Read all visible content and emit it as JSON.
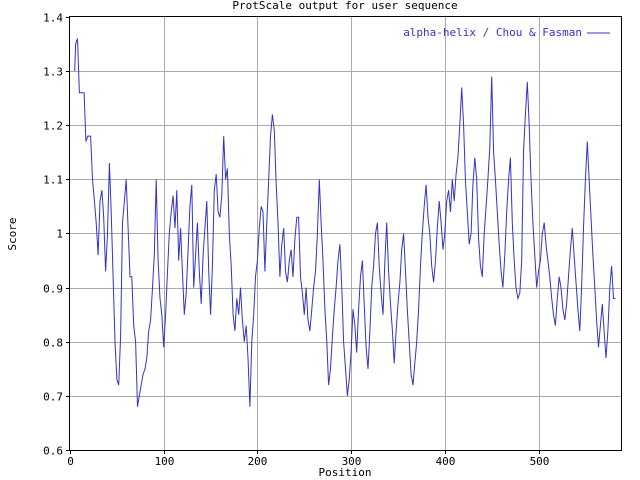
{
  "chart_data": {
    "type": "line",
    "title": "ProtScale output for user sequence",
    "xlabel": "Position",
    "ylabel": "Score",
    "xlim": [
      0,
      588
    ],
    "ylim": [
      0.6,
      1.4
    ],
    "x_ticks": [
      0,
      100,
      200,
      300,
      400,
      500
    ],
    "y_ticks": [
      0.6,
      0.7,
      0.8,
      0.9,
      1.0,
      1.1,
      1.2,
      1.3,
      1.4
    ],
    "x_tick_labels": [
      "0",
      "100",
      "200",
      "300",
      "400",
      "500"
    ],
    "y_tick_labels": [
      "0.6",
      "0.7",
      "0.8",
      "0.9",
      "1",
      "1.1",
      "1.2",
      "1.3",
      "1.4"
    ],
    "grid": true,
    "legend_position": "top-right",
    "line_color": "#3333cc",
    "series": [
      {
        "name": "alpha-helix / Chou & Fasman",
        "points": [
          [
            5,
            1.3
          ],
          [
            6,
            1.35
          ],
          [
            8,
            1.36
          ],
          [
            10,
            1.26
          ],
          [
            13,
            1.26
          ],
          [
            15,
            1.26
          ],
          [
            17,
            1.17
          ],
          [
            19,
            1.18
          ],
          [
            22,
            1.18
          ],
          [
            24,
            1.1
          ],
          [
            26,
            1.06
          ],
          [
            28,
            1.02
          ],
          [
            30,
            0.96
          ],
          [
            32,
            1.06
          ],
          [
            34,
            1.08
          ],
          [
            36,
            1.03
          ],
          [
            38,
            0.93
          ],
          [
            40,
            1.0
          ],
          [
            42,
            1.13
          ],
          [
            44,
            1.04
          ],
          [
            46,
            0.92
          ],
          [
            48,
            0.8
          ],
          [
            50,
            0.73
          ],
          [
            52,
            0.72
          ],
          [
            54,
            0.81
          ],
          [
            56,
            1.02
          ],
          [
            58,
            1.06
          ],
          [
            60,
            1.1
          ],
          [
            62,
            1.01
          ],
          [
            64,
            0.92
          ],
          [
            66,
            0.92
          ],
          [
            68,
            0.83
          ],
          [
            70,
            0.8
          ],
          [
            72,
            0.68
          ],
          [
            74,
            0.7
          ],
          [
            76,
            0.72
          ],
          [
            78,
            0.74
          ],
          [
            80,
            0.75
          ],
          [
            82,
            0.77
          ],
          [
            84,
            0.82
          ],
          [
            86,
            0.84
          ],
          [
            88,
            0.9
          ],
          [
            90,
            0.96
          ],
          [
            92,
            1.1
          ],
          [
            94,
            0.95
          ],
          [
            96,
            0.88
          ],
          [
            98,
            0.85
          ],
          [
            100,
            0.79
          ],
          [
            102,
            0.85
          ],
          [
            104,
            0.93
          ],
          [
            106,
            1.0
          ],
          [
            108,
            1.04
          ],
          [
            110,
            1.07
          ],
          [
            112,
            1.01
          ],
          [
            114,
            1.08
          ],
          [
            116,
            0.95
          ],
          [
            118,
            1.01
          ],
          [
            120,
            0.93
          ],
          [
            122,
            0.85
          ],
          [
            124,
            0.89
          ],
          [
            126,
            0.97
          ],
          [
            128,
            1.05
          ],
          [
            130,
            1.09
          ],
          [
            132,
            0.9
          ],
          [
            134,
            0.96
          ],
          [
            136,
            1.02
          ],
          [
            138,
            0.93
          ],
          [
            140,
            0.87
          ],
          [
            142,
            0.96
          ],
          [
            144,
            1.01
          ],
          [
            146,
            1.06
          ],
          [
            148,
            0.93
          ],
          [
            150,
            0.85
          ],
          [
            152,
            0.94
          ],
          [
            154,
            1.08
          ],
          [
            156,
            1.11
          ],
          [
            158,
            1.04
          ],
          [
            160,
            1.03
          ],
          [
            162,
            1.07
          ],
          [
            164,
            1.18
          ],
          [
            166,
            1.1
          ],
          [
            168,
            1.12
          ],
          [
            170,
            1.0
          ],
          [
            172,
            0.94
          ],
          [
            174,
            0.85
          ],
          [
            176,
            0.82
          ],
          [
            178,
            0.88
          ],
          [
            180,
            0.85
          ],
          [
            182,
            0.9
          ],
          [
            184,
            0.84
          ],
          [
            186,
            0.8
          ],
          [
            188,
            0.83
          ],
          [
            190,
            0.77
          ],
          [
            192,
            0.68
          ],
          [
            194,
            0.8
          ],
          [
            196,
            0.85
          ],
          [
            198,
            0.92
          ],
          [
            200,
            0.95
          ],
          [
            202,
            1.01
          ],
          [
            204,
            1.05
          ],
          [
            206,
            1.04
          ],
          [
            208,
            0.93
          ],
          [
            210,
            1.02
          ],
          [
            212,
            1.1
          ],
          [
            214,
            1.18
          ],
          [
            216,
            1.22
          ],
          [
            218,
            1.19
          ],
          [
            220,
            1.09
          ],
          [
            222,
            1.02
          ],
          [
            224,
            0.92
          ],
          [
            226,
            0.98
          ],
          [
            228,
            1.01
          ],
          [
            230,
            0.93
          ],
          [
            232,
            0.91
          ],
          [
            234,
            0.95
          ],
          [
            236,
            0.97
          ],
          [
            238,
            0.92
          ],
          [
            240,
            0.99
          ],
          [
            242,
            1.03
          ],
          [
            244,
            1.03
          ],
          [
            246,
            0.92
          ],
          [
            248,
            0.89
          ],
          [
            250,
            0.85
          ],
          [
            252,
            0.9
          ],
          [
            254,
            0.84
          ],
          [
            256,
            0.82
          ],
          [
            258,
            0.86
          ],
          [
            260,
            0.9
          ],
          [
            262,
            0.93
          ],
          [
            264,
            1.0
          ],
          [
            266,
            1.1
          ],
          [
            268,
            1.02
          ],
          [
            270,
            0.95
          ],
          [
            272,
            0.86
          ],
          [
            274,
            0.8
          ],
          [
            276,
            0.72
          ],
          [
            278,
            0.75
          ],
          [
            280,
            0.81
          ],
          [
            282,
            0.86
          ],
          [
            284,
            0.9
          ],
          [
            286,
            0.95
          ],
          [
            288,
            0.98
          ],
          [
            290,
            0.9
          ],
          [
            292,
            0.8
          ],
          [
            294,
            0.75
          ],
          [
            296,
            0.7
          ],
          [
            298,
            0.73
          ],
          [
            300,
            0.78
          ],
          [
            302,
            0.86
          ],
          [
            304,
            0.83
          ],
          [
            306,
            0.78
          ],
          [
            308,
            0.86
          ],
          [
            310,
            0.92
          ],
          [
            312,
            0.95
          ],
          [
            314,
            0.87
          ],
          [
            316,
            0.79
          ],
          [
            318,
            0.75
          ],
          [
            320,
            0.82
          ],
          [
            322,
            0.9
          ],
          [
            324,
            0.94
          ],
          [
            326,
            1.0
          ],
          [
            328,
            1.02
          ],
          [
            330,
            0.94
          ],
          [
            332,
            0.89
          ],
          [
            334,
            0.85
          ],
          [
            336,
            0.95
          ],
          [
            338,
            1.02
          ],
          [
            340,
            0.93
          ],
          [
            342,
            0.87
          ],
          [
            344,
            0.82
          ],
          [
            346,
            0.76
          ],
          [
            348,
            0.82
          ],
          [
            350,
            0.87
          ],
          [
            352,
            0.91
          ],
          [
            354,
            0.97
          ],
          [
            356,
            1.0
          ],
          [
            358,
            0.93
          ],
          [
            360,
            0.86
          ],
          [
            362,
            0.8
          ],
          [
            364,
            0.74
          ],
          [
            366,
            0.72
          ],
          [
            368,
            0.76
          ],
          [
            370,
            0.8
          ],
          [
            372,
            0.86
          ],
          [
            374,
            0.94
          ],
          [
            376,
            1.0
          ],
          [
            378,
            1.05
          ],
          [
            380,
            1.09
          ],
          [
            382,
            1.03
          ],
          [
            384,
            1.0
          ],
          [
            386,
            0.94
          ],
          [
            388,
            0.91
          ],
          [
            390,
            0.95
          ],
          [
            392,
            1.01
          ],
          [
            394,
            1.06
          ],
          [
            396,
            1.02
          ],
          [
            398,
            0.97
          ],
          [
            400,
            1.0
          ],
          [
            402,
            1.06
          ],
          [
            404,
            1.08
          ],
          [
            406,
            1.04
          ],
          [
            408,
            1.1
          ],
          [
            410,
            1.06
          ],
          [
            412,
            1.11
          ],
          [
            414,
            1.14
          ],
          [
            416,
            1.2
          ],
          [
            418,
            1.27
          ],
          [
            420,
            1.2
          ],
          [
            422,
            1.1
          ],
          [
            424,
            1.04
          ],
          [
            426,
            0.98
          ],
          [
            428,
            1.0
          ],
          [
            430,
            1.09
          ],
          [
            432,
            1.14
          ],
          [
            434,
            1.1
          ],
          [
            436,
            0.99
          ],
          [
            438,
            0.94
          ],
          [
            440,
            0.92
          ],
          [
            442,
            1.0
          ],
          [
            444,
            1.05
          ],
          [
            446,
            1.1
          ],
          [
            448,
            1.16
          ],
          [
            450,
            1.29
          ],
          [
            452,
            1.15
          ],
          [
            454,
            1.1
          ],
          [
            456,
            1.04
          ],
          [
            458,
            0.98
          ],
          [
            460,
            0.93
          ],
          [
            462,
            0.9
          ],
          [
            464,
            0.96
          ],
          [
            466,
            1.04
          ],
          [
            468,
            1.1
          ],
          [
            470,
            1.14
          ],
          [
            472,
            1.02
          ],
          [
            474,
            0.95
          ],
          [
            476,
            0.9
          ],
          [
            478,
            0.88
          ],
          [
            480,
            0.89
          ],
          [
            482,
            0.95
          ],
          [
            484,
            1.15
          ],
          [
            486,
            1.22
          ],
          [
            488,
            1.28
          ],
          [
            490,
            1.2
          ],
          [
            492,
            1.1
          ],
          [
            494,
            1.02
          ],
          [
            496,
            0.96
          ],
          [
            498,
            0.9
          ],
          [
            500,
            0.93
          ],
          [
            502,
            0.95
          ],
          [
            504,
            1.0
          ],
          [
            506,
            1.02
          ],
          [
            508,
            0.98
          ],
          [
            510,
            0.95
          ],
          [
            512,
            0.92
          ],
          [
            514,
            0.88
          ],
          [
            516,
            0.85
          ],
          [
            518,
            0.83
          ],
          [
            520,
            0.88
          ],
          [
            522,
            0.92
          ],
          [
            524,
            0.9
          ],
          [
            526,
            0.86
          ],
          [
            528,
            0.84
          ],
          [
            530,
            0.87
          ],
          [
            532,
            0.92
          ],
          [
            534,
            0.97
          ],
          [
            536,
            1.01
          ],
          [
            538,
            0.96
          ],
          [
            540,
            0.91
          ],
          [
            542,
            0.86
          ],
          [
            544,
            0.82
          ],
          [
            546,
            0.9
          ],
          [
            548,
            1.01
          ],
          [
            550,
            1.1
          ],
          [
            552,
            1.17
          ],
          [
            554,
            1.1
          ],
          [
            556,
            1.03
          ],
          [
            558,
            0.96
          ],
          [
            560,
            0.9
          ],
          [
            562,
            0.84
          ],
          [
            564,
            0.79
          ],
          [
            566,
            0.83
          ],
          [
            568,
            0.87
          ],
          [
            570,
            0.82
          ],
          [
            572,
            0.77
          ],
          [
            574,
            0.82
          ],
          [
            576,
            0.9
          ],
          [
            578,
            0.94
          ],
          [
            580,
            0.88
          ],
          [
            582,
            0.88
          ]
        ]
      }
    ]
  }
}
